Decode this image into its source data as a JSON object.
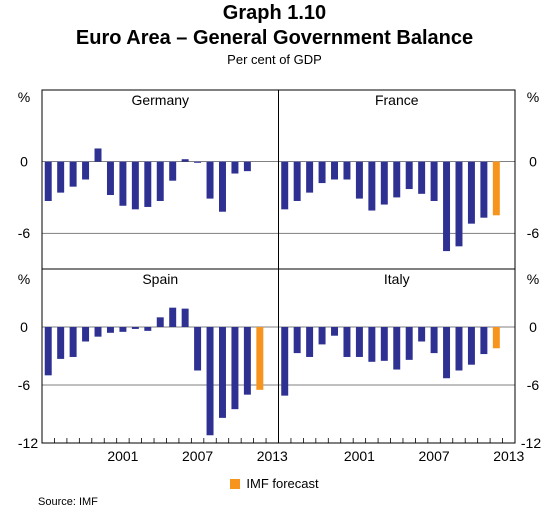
{
  "header": {
    "title": "Graph 1.10",
    "subtitle": "Euro Area – General Government Balance",
    "units": "Per cent of GDP"
  },
  "legend": {
    "label": "IMF forecast"
  },
  "source": "Source: IMF",
  "colors": {
    "actual": "#2e3192",
    "forecast": "#f7941d",
    "grid": "#000000"
  },
  "chart_data": {
    "type": "bar",
    "x": [
      1995,
      1996,
      1997,
      1998,
      1999,
      2000,
      2001,
      2002,
      2003,
      2004,
      2005,
      2006,
      2007,
      2008,
      2009,
      2010,
      2011,
      2012,
      2013
    ],
    "xtick_labels": [
      "2001",
      "2007",
      "2013"
    ],
    "forecast_from": 2012,
    "ylim": [
      -12,
      6
    ],
    "ylabel": "%",
    "yticks": [
      "0",
      "-6",
      "-12"
    ],
    "panels": [
      {
        "name": "Germany",
        "values": [
          -3.3,
          -2.6,
          -2.1,
          -1.5,
          1.1,
          -2.8,
          -3.7,
          -4.0,
          -3.8,
          -3.3,
          -1.6,
          0.2,
          -0.1,
          -3.1,
          -4.2,
          -1.0,
          -0.8,
          null,
          null
        ]
      },
      {
        "name": "France",
        "values": [
          -4.0,
          -3.3,
          -2.6,
          -1.8,
          -1.5,
          -1.5,
          -3.1,
          -4.1,
          -3.6,
          -3.0,
          -2.3,
          -2.7,
          -3.3,
          -7.5,
          -7.1,
          -5.2,
          -4.7,
          -4.5,
          null
        ]
      },
      {
        "name": "Spain",
        "values": [
          -5.0,
          -3.3,
          -3.1,
          -1.5,
          -1.0,
          -0.6,
          -0.5,
          -0.2,
          -0.4,
          1.0,
          2.0,
          1.9,
          -4.5,
          -11.2,
          -9.4,
          -8.5,
          -7.0,
          -6.5,
          null
        ]
      },
      {
        "name": "Italy",
        "values": [
          -7.1,
          -2.7,
          -3.1,
          -1.8,
          -0.9,
          -3.1,
          -3.1,
          -3.6,
          -3.5,
          -4.4,
          -3.4,
          -1.5,
          -2.7,
          -5.3,
          -4.5,
          -3.9,
          -2.8,
          -2.2,
          null
        ]
      }
    ]
  }
}
